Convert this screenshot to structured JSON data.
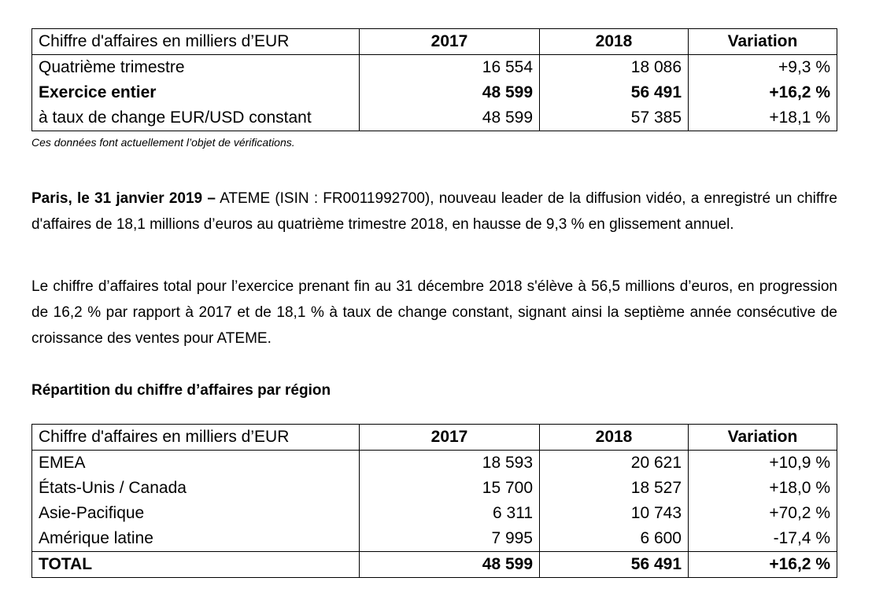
{
  "table1": {
    "headers": [
      "Chiffre d'affaires en milliers d’EUR",
      "2017",
      "2018",
      "Variation"
    ],
    "rows": [
      [
        "Quatrième trimestre",
        "16 554",
        "18 086",
        "+9,3 %"
      ],
      [
        "Exercice entier",
        "48 599",
        "56 491",
        "+16,2 %"
      ],
      [
        "à taux de change EUR/USD constant",
        "48 599",
        "57 385",
        "+18,1 %"
      ]
    ]
  },
  "note": "Ces données font actuellement l’objet de vérifications.",
  "para1": {
    "lead": "Paris, le 31 janvier 2019 –",
    "text": " ATEME (ISIN : FR0011992700), nouveau leader de la diffusion vidéo, a enregistré un chiffre d'affaires de 18,1 millions d’euros au quatrième trimestre 2018, en hausse de 9,3 % en glissement annuel."
  },
  "para2": "Le chiffre d’affaires total pour l’exercice prenant fin au 31 décembre 2018 s'élève à 56,5 millions d’euros, en progression de 16,2 % par rapport à 2017 et de 18,1 % à taux de change constant, signant ainsi la septième année consécutive de croissance des ventes pour ATEME.",
  "section_title": "Répartition du chiffre d’affaires par région",
  "table2": {
    "headers": [
      "Chiffre d'affaires en milliers d’EUR",
      "2017",
      "2018",
      "Variation"
    ],
    "rows": [
      [
        "EMEA",
        "18 593",
        "20 621",
        "+10,9 %"
      ],
      [
        "États-Unis / Canada",
        "15 700",
        "18 527",
        "+18,0 %"
      ],
      [
        "Asie-Pacifique",
        "6 311",
        "10 743",
        "+70,2 %"
      ],
      [
        "Amérique latine",
        "7 995",
        "6 600",
        "-17,4 %"
      ],
      [
        "TOTAL",
        "48 599",
        "56 491",
        "+16,2 %"
      ]
    ]
  }
}
